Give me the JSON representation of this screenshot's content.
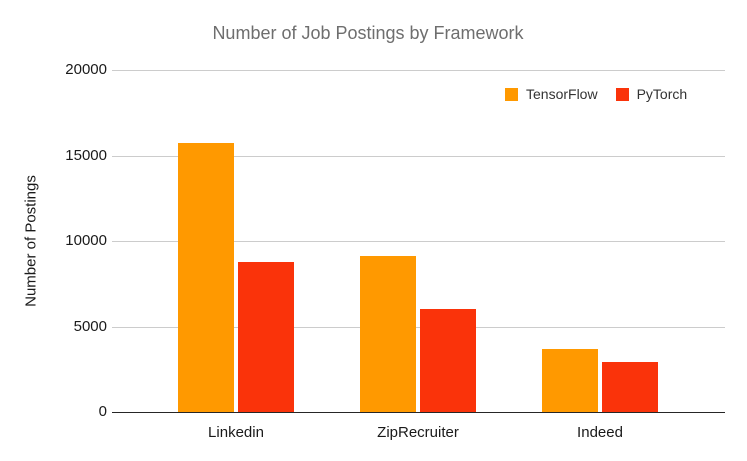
{
  "chart_data": {
    "type": "bar",
    "title": "Number of Job Postings by Framework",
    "categories": [
      "Linkedin",
      "ZipRecruiter",
      "Indeed"
    ],
    "series": [
      {
        "name": "TensorFlow",
        "color": "#ff9900",
        "values": [
          15750,
          9150,
          3700
        ]
      },
      {
        "name": "PyTorch",
        "color": "#fa330a",
        "values": [
          8750,
          6000,
          2950
        ]
      }
    ],
    "xlabel": "",
    "ylabel": "Number of Postings",
    "ylim": [
      0,
      20000
    ],
    "yticks": [
      0,
      5000,
      10000,
      15000,
      20000
    ],
    "ytick_labels": [
      "0",
      "5000",
      "10000",
      "15000",
      "20000"
    ],
    "grid": true,
    "legend_position": "top-right",
    "colors": {
      "title_text": "#6e6e6e",
      "axis_text": "#1a1a1a",
      "gridline": "#cccccc",
      "baseline": "#262626",
      "background": "#ffffff"
    }
  }
}
